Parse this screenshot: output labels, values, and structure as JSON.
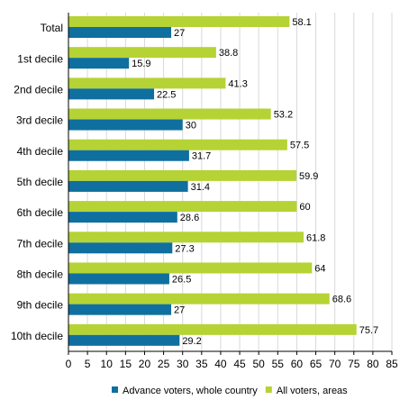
{
  "chart_data": {
    "type": "bar",
    "orientation": "horizontal",
    "title": "",
    "xlabel": "",
    "ylabel": "",
    "categories": [
      "Total",
      "1st decile",
      "2nd decile",
      "3rd decile",
      "4th decile",
      "5th decile",
      "6th decile",
      "7th decile",
      "8th decile",
      "9th decile",
      "10th decile"
    ],
    "series": [
      {
        "name": "All voters, areas",
        "color": "#b5d334",
        "values": [
          58.1,
          38.8,
          41.3,
          53.2,
          57.5,
          59.9,
          60,
          61.8,
          64,
          68.6,
          75.7
        ]
      },
      {
        "name": "Advance voters, whole country",
        "color": "#0f6f9f",
        "values": [
          27,
          15.9,
          22.5,
          30,
          31.7,
          31.4,
          28.6,
          27.3,
          26.5,
          27,
          29.2
        ]
      }
    ],
    "xlim": [
      0,
      85
    ],
    "xticks": [
      0,
      5,
      10,
      15,
      20,
      25,
      30,
      35,
      40,
      45,
      50,
      55,
      60,
      65,
      70,
      75,
      80,
      85
    ],
    "legend_order": [
      "Advance voters, whole country",
      "All voters, areas"
    ],
    "legend_position": "bottom",
    "grid": "vertical"
  }
}
